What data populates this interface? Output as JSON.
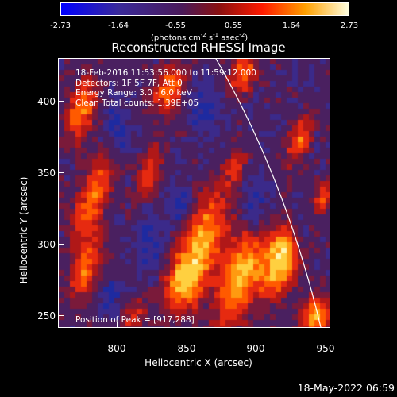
{
  "colorbar": {
    "tick_labels": [
      "-2.73",
      "-1.64",
      "-0.55",
      "0.55",
      "1.64",
      "2.73"
    ],
    "units_prefix": "(photons cm",
    "units_exp1": "-2",
    "units_mid": " s",
    "units_exp2": "-1",
    "units_mid2": " asec",
    "units_exp3": "-2",
    "units_suffix": ")",
    "colors": [
      "#0000ff",
      "#3c1c60",
      "#7a1818",
      "#ff0000",
      "#ff9a00",
      "#ffff80"
    ]
  },
  "chart_data": {
    "type": "heatmap",
    "title": "Reconstructed RHESSI Image",
    "xlabel": "Heliocentric X (arcsec)",
    "ylabel": "Heliocentric Y (arcsec)",
    "xlim": [
      762,
      955
    ],
    "ylim": [
      230,
      423
    ],
    "xticks": [
      "800",
      "850",
      "900",
      "950"
    ],
    "yticks": [
      "250",
      "300",
      "350",
      "400"
    ],
    "value_range": [
      -2.73,
      2.73
    ],
    "peak": [
      917,
      288
    ],
    "limb_line": true
  },
  "info": {
    "time_range": "18-Feb-2016 11:53:56.000 to 11:59:12.000",
    "detectors": "Detectors: 1F 5F 7F, Att 0",
    "energy": "Energy Range: 3.0 - 6.0 keV",
    "clean": "Clean    Total counts: 1.39E+05",
    "peak_text": "Position of Peak = [917,288]"
  },
  "timestamp": "18-May-2022 06:59"
}
